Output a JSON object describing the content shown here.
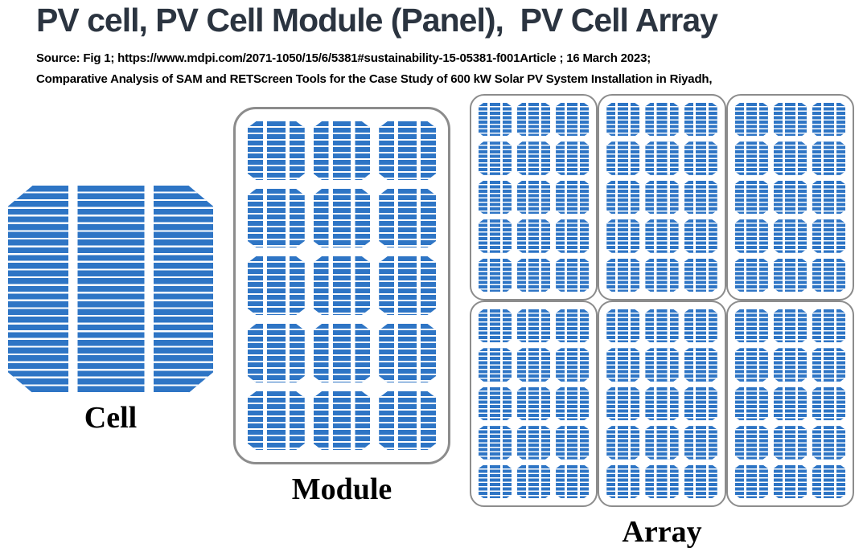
{
  "header": {
    "title": "PV cell, PV Cell Module (Panel),  PV Cell Array",
    "source_line1": "Source: Fig 1; https://www.mdpi.com/2071-1050/15/6/5381#sustainability-15-05381-f001Article ; 16 March 2023;",
    "source_line2": "Comparative Analysis of SAM and RETScreen Tools for the Case Study of 600 kW Solar PV System Installation in Riyadh,"
  },
  "figures": {
    "cell": {
      "label": "Cell"
    },
    "module": {
      "label": "Module",
      "cell_rows": 5,
      "cell_cols": 3
    },
    "array": {
      "label": "Array",
      "module_rows": 2,
      "module_cols": 3,
      "cells_per_module_rows": 5,
      "cells_per_module_cols": 3
    }
  },
  "colors": {
    "cell_blue": "#2E75C5",
    "stripe_gap_white": "#FFFFFF",
    "panel_border_gray": "#8C8C8C",
    "title_navy": "#2B3440",
    "source_black": "#000000",
    "label_black": "#000000"
  }
}
